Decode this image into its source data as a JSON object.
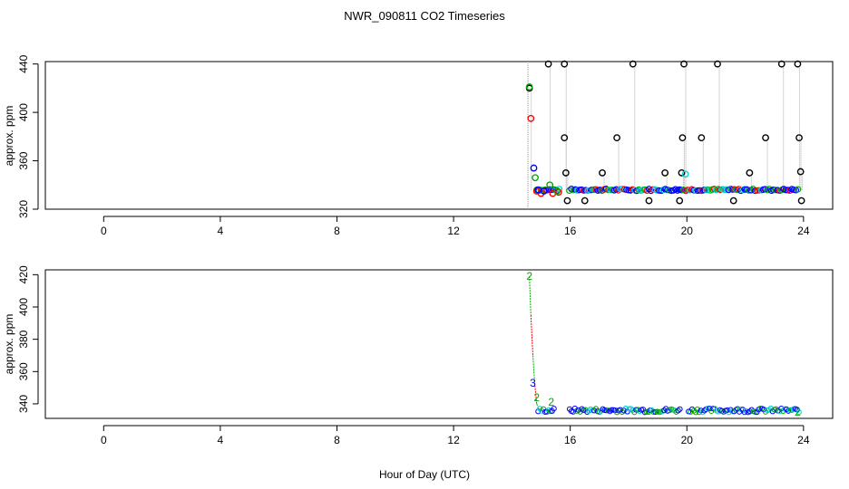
{
  "figure": {
    "title": "NWR_090811  CO2 Timeseries",
    "xlabel": "Hour of Day (UTC)"
  },
  "chart_data": [
    {
      "type": "scatter",
      "panel": "top",
      "xlabel": "Hour of Day (UTC)",
      "ylabel": "approx. ppm",
      "xlim": [
        -2,
        25
      ],
      "ylim": [
        320,
        442
      ],
      "xticks": [
        0,
        4,
        8,
        12,
        16,
        20,
        24
      ],
      "yticks": [
        320,
        360,
        400,
        440
      ],
      "grid": false,
      "series": [
        {
          "name": "black",
          "color": "#000000",
          "points": [
            [
              14.6,
              420
            ],
            [
              15.25,
              440
            ],
            [
              15.8,
              440
            ],
            [
              15.8,
              379
            ],
            [
              15.85,
              350
            ],
            [
              15.9,
              327
            ],
            [
              16.5,
              327
            ],
            [
              17.1,
              350
            ],
            [
              17.6,
              379
            ],
            [
              18.15,
              440
            ],
            [
              18.7,
              327
            ],
            [
              19.25,
              350
            ],
            [
              19.75,
              327
            ],
            [
              19.82,
              350
            ],
            [
              19.85,
              379
            ],
            [
              19.9,
              440
            ],
            [
              20.5,
              379
            ],
            [
              21.05,
              440
            ],
            [
              21.6,
              327
            ],
            [
              22.15,
              350
            ],
            [
              22.7,
              379
            ],
            [
              23.25,
              440
            ],
            [
              23.8,
              440
            ],
            [
              23.85,
              379
            ],
            [
              23.9,
              351
            ],
            [
              23.93,
              327
            ]
          ]
        },
        {
          "name": "red",
          "color": "#ff0000",
          "points": [
            [
              14.65,
              395
            ],
            [
              14.85,
              335
            ],
            [
              15.0,
              333
            ],
            [
              15.4,
              333
            ],
            [
              15.6,
              334
            ]
          ]
        },
        {
          "name": "green",
          "color": "#00aa00",
          "points": [
            [
              14.6,
              421
            ],
            [
              14.8,
              346
            ],
            [
              15.3,
              340
            ],
            [
              15.55,
              335
            ]
          ]
        },
        {
          "name": "blue",
          "color": "#0000ff",
          "points": [
            [
              14.75,
              354
            ],
            [
              14.9,
              336
            ],
            [
              15.1,
              335
            ]
          ]
        },
        {
          "name": "cyan",
          "color": "#00d0d0",
          "points": [
            [
              19.95,
              349
            ]
          ]
        }
      ],
      "baseline_band": {
        "x_start": 14.85,
        "x_end": 23.85,
        "value": 336
      }
    },
    {
      "type": "scatter",
      "panel": "bottom",
      "xlabel": "Hour of Day (UTC)",
      "ylabel": "approx. ppm",
      "xlim": [
        -2,
        25
      ],
      "ylim": [
        331,
        423
      ],
      "xticks": [
        0,
        4,
        8,
        12,
        16,
        20,
        24
      ],
      "yticks": [
        340,
        360,
        380,
        400,
        420
      ],
      "grid": false,
      "annotations": [
        {
          "label": "2",
          "x": 14.6,
          "y": 419,
          "color": "#00aa00"
        },
        {
          "label": "3",
          "x": 14.72,
          "y": 353,
          "color": "#0000ff"
        },
        {
          "label": "2",
          "x": 14.85,
          "y": 344,
          "color": "#00aa00"
        },
        {
          "label": "2",
          "x": 15.35,
          "y": 341,
          "color": "#00aa00"
        },
        {
          "label": "2",
          "x": 23.8,
          "y": 335,
          "color": "#00aa00"
        }
      ],
      "trace": [
        [
          14.6,
          419
        ],
        [
          14.65,
          395
        ],
        [
          14.72,
          370
        ],
        [
          14.78,
          353
        ],
        [
          14.85,
          340
        ],
        [
          14.95,
          336
        ],
        [
          15.1,
          335
        ]
      ],
      "baseline_band": {
        "x_start": 14.9,
        "x_end": 23.85,
        "value": 336
      }
    }
  ]
}
